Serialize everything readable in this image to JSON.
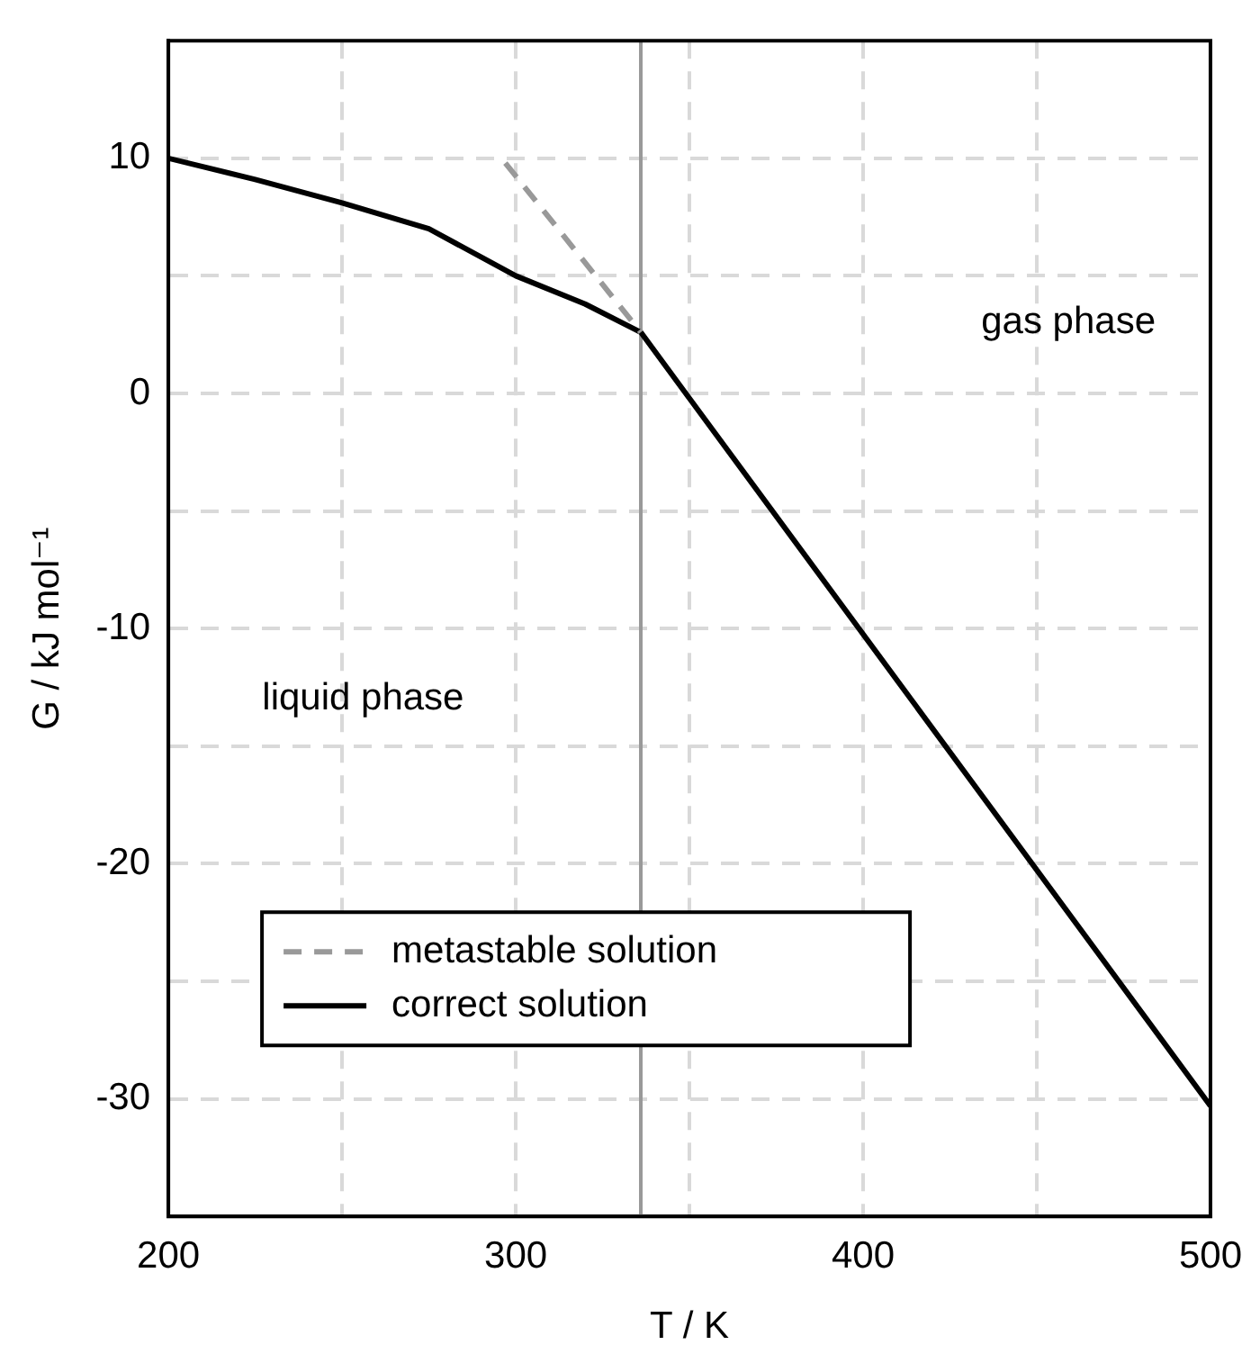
{
  "chart_data": {
    "type": "line",
    "xlabel": "T / K",
    "ylabel": "G / kJ mol⁻¹",
    "xlim": [
      200,
      500
    ],
    "xticks": [
      200,
      {
        "value": 250,
        "label": null
      },
      300,
      {
        "value": 350,
        "label": null
      },
      400,
      {
        "value": 450,
        "label": null
      },
      500
    ],
    "ylim": [
      -35,
      15
    ],
    "yticks": [
      -30,
      {
        "value": -25,
        "label": null
      },
      -20,
      {
        "value": -15,
        "label": null
      },
      -10,
      {
        "value": -5,
        "label": null
      },
      0,
      {
        "value": 5,
        "label": null
      },
      10
    ],
    "grid": true,
    "legend": "bottom left",
    "marker": "none",
    "ref_lines": [
      {
        "axis": "x",
        "value": 336,
        "color": "#999999",
        "line_style": "solid"
      }
    ],
    "annotations": [
      "gas phase",
      "liquid phase"
    ],
    "series": [
      {
        "name": "metastable solution",
        "color": "#999999",
        "line_style": "dashed",
        "x": [
          297,
          336
        ],
        "values": [
          9.8,
          2.6
        ]
      },
      {
        "name": "correct solution",
        "color": "#000000",
        "line_style": "solid",
        "x": [
          200,
          225,
          250,
          275,
          300,
          320,
          336,
          500
        ],
        "values": [
          10,
          9.1,
          8.1,
          7.0,
          5.0,
          3.8,
          2.6,
          -30.3
        ]
      }
    ]
  }
}
